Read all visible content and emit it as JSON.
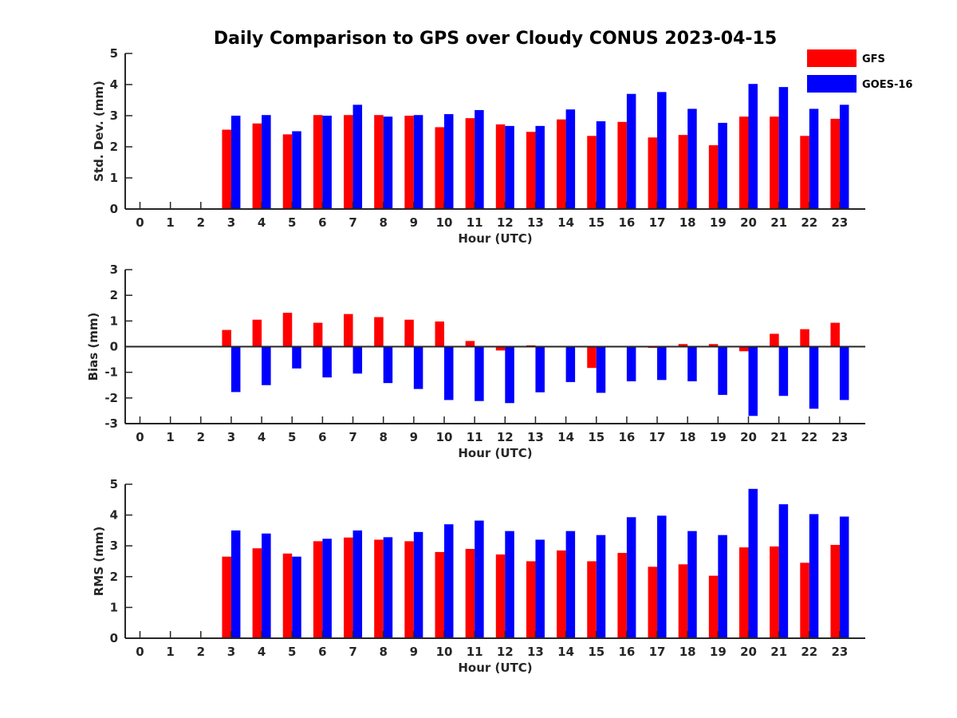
{
  "title": "Daily Comparison to GPS over Cloudy CONUS 2023-04-15",
  "colors": {
    "GFS": "#ff0000",
    "GOES-16": "#0000ff",
    "axis": "#262626"
  },
  "chart_data": [
    {
      "type": "bar",
      "panel": "std-dev",
      "xlabel": "Hour (UTC)",
      "ylabel": "Std. Dev. (mm)",
      "ylim": [
        0,
        5
      ],
      "yticks": [
        0,
        1,
        2,
        3,
        4,
        5
      ],
      "categories": [
        "0",
        "1",
        "2",
        "3",
        "4",
        "5",
        "6",
        "7",
        "8",
        "9",
        "10",
        "11",
        "12",
        "13",
        "14",
        "15",
        "16",
        "17",
        "18",
        "19",
        "20",
        "21",
        "22",
        "23"
      ],
      "series": [
        {
          "name": "GFS",
          "values": [
            null,
            null,
            null,
            2.55,
            2.75,
            2.4,
            3.02,
            3.02,
            3.02,
            3.0,
            2.63,
            2.92,
            2.72,
            2.48,
            2.88,
            2.35,
            2.8,
            2.3,
            2.38,
            2.05,
            2.97,
            2.97,
            2.35,
            2.9
          ]
        },
        {
          "name": "GOES-16",
          "values": [
            null,
            null,
            null,
            3.0,
            3.02,
            2.5,
            3.0,
            3.35,
            2.97,
            3.02,
            3.05,
            3.18,
            2.67,
            2.67,
            3.2,
            2.82,
            3.7,
            3.76,
            3.22,
            2.77,
            4.02,
            3.92,
            3.22,
            3.35
          ]
        }
      ],
      "legend": {
        "entries": [
          "GFS",
          "GOES-16"
        ],
        "placement": "top-right"
      }
    },
    {
      "type": "bar",
      "panel": "bias",
      "xlabel": "Hour (UTC)",
      "ylabel": "Bias (mm)",
      "ylim": [
        -3,
        3
      ],
      "yticks": [
        -3,
        -2,
        -1,
        0,
        1,
        2,
        3
      ],
      "categories": [
        "0",
        "1",
        "2",
        "3",
        "4",
        "5",
        "6",
        "7",
        "8",
        "9",
        "10",
        "11",
        "12",
        "13",
        "14",
        "15",
        "16",
        "17",
        "18",
        "19",
        "20",
        "21",
        "22",
        "23"
      ],
      "series": [
        {
          "name": "GFS",
          "values": [
            null,
            null,
            null,
            0.65,
            1.05,
            1.32,
            0.93,
            1.27,
            1.15,
            1.05,
            0.98,
            0.22,
            -0.15,
            0.05,
            0.03,
            -0.83,
            0.0,
            -0.05,
            0.1,
            0.1,
            -0.18,
            0.5,
            0.68,
            0.93
          ]
        },
        {
          "name": "GOES-16",
          "values": [
            null,
            null,
            null,
            -1.77,
            -1.5,
            -0.85,
            -1.2,
            -1.05,
            -1.42,
            -1.65,
            -2.08,
            -2.12,
            -2.2,
            -1.78,
            -1.38,
            -1.8,
            -1.35,
            -1.3,
            -1.35,
            -1.88,
            -2.7,
            -1.92,
            -2.42,
            -2.08
          ]
        }
      ]
    },
    {
      "type": "bar",
      "panel": "rms",
      "xlabel": "Hour (UTC)",
      "ylabel": "RMS (mm)",
      "ylim": [
        0,
        5
      ],
      "yticks": [
        0,
        1,
        2,
        3,
        4,
        5
      ],
      "categories": [
        "0",
        "1",
        "2",
        "3",
        "4",
        "5",
        "6",
        "7",
        "8",
        "9",
        "10",
        "11",
        "12",
        "13",
        "14",
        "15",
        "16",
        "17",
        "18",
        "19",
        "20",
        "21",
        "22",
        "23"
      ],
      "series": [
        {
          "name": "GFS",
          "values": [
            null,
            null,
            null,
            2.65,
            2.92,
            2.75,
            3.15,
            3.27,
            3.2,
            3.15,
            2.8,
            2.9,
            2.72,
            2.5,
            2.85,
            2.5,
            2.77,
            2.32,
            2.4,
            2.03,
            2.95,
            2.98,
            2.45,
            3.03
          ]
        },
        {
          "name": "GOES-16",
          "values": [
            null,
            null,
            null,
            3.5,
            3.4,
            2.65,
            3.23,
            3.5,
            3.28,
            3.45,
            3.7,
            3.82,
            3.48,
            3.2,
            3.48,
            3.35,
            3.93,
            3.98,
            3.48,
            3.35,
            4.85,
            4.35,
            4.03,
            3.95
          ]
        }
      ]
    }
  ]
}
